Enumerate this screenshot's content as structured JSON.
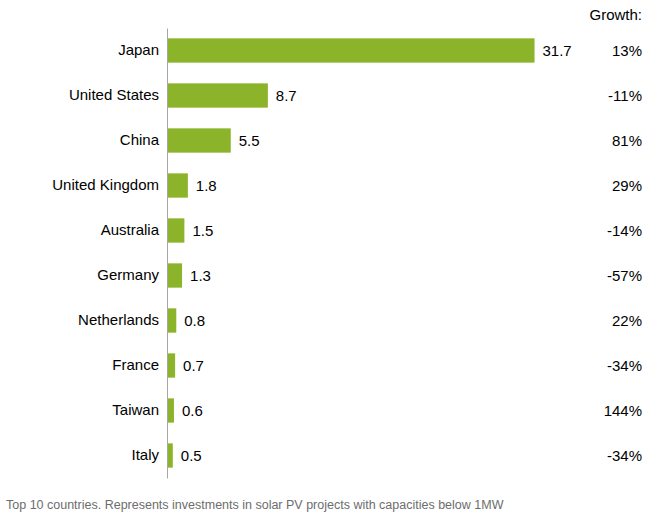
{
  "chart_data": {
    "type": "bar",
    "orientation": "horizontal",
    "categories": [
      "Japan",
      "United States",
      "China",
      "United Kingdom",
      "Australia",
      "Germany",
      "Netherlands",
      "France",
      "Taiwan",
      "Italy"
    ],
    "values": [
      31.7,
      8.7,
      5.5,
      1.8,
      1.5,
      1.3,
      0.8,
      0.7,
      0.6,
      0.5
    ],
    "color": "#8cb42a",
    "xlim": [
      0,
      32
    ],
    "data_labels": true,
    "tick_labels": "y",
    "growth_title": "Growth:",
    "growth": [
      13,
      -11,
      81,
      29,
      -14,
      -57,
      22,
      -34,
      144,
      -34
    ],
    "growth_labels": [
      "13%",
      "-11%",
      "81%",
      "29%",
      "-14%",
      "-57%",
      "22%",
      "-34%",
      "144%",
      "-34%"
    ],
    "caption": "Top 10 countries. Represents investments in solar PV projects with capacities below 1MW"
  }
}
